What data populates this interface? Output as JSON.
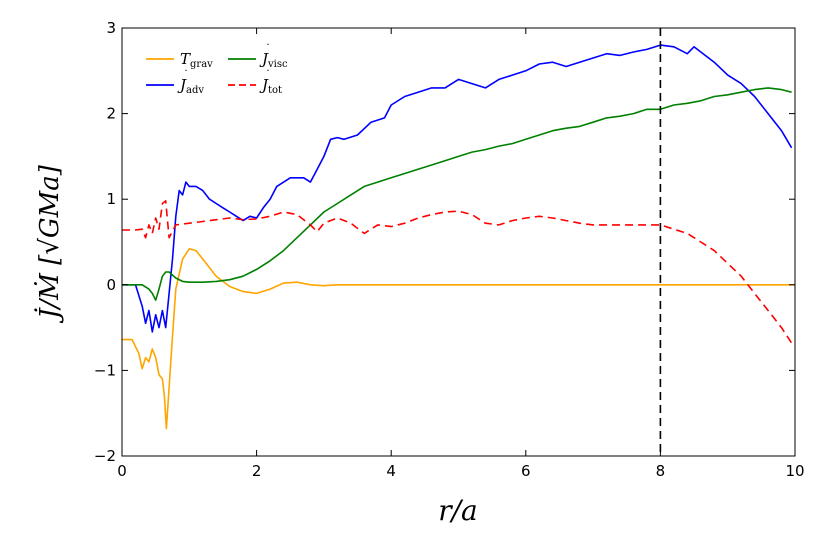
{
  "chart_data": {
    "type": "line",
    "xlabel": "r/a",
    "ylabel": "J̇/Ṁ  [√GMa]",
    "xlim": [
      0,
      10
    ],
    "ylim": [
      -2,
      3
    ],
    "xticks": [
      "0",
      "2",
      "4",
      "6",
      "8",
      "10"
    ],
    "yticks": [
      "−2",
      "−1",
      "0",
      "1",
      "2",
      "3"
    ],
    "grid": false,
    "legend_position": "top-left",
    "vline": {
      "x": 8,
      "style": "dashed",
      "color": "#000000"
    },
    "series": [
      {
        "name": "T_grav",
        "name_main": "T",
        "name_sub": "grav",
        "color": "#FFA500",
        "dash": "solid",
        "x": [
          0,
          0.15,
          0.25,
          0.3,
          0.35,
          0.4,
          0.45,
          0.5,
          0.55,
          0.6,
          0.63,
          0.66,
          0.7,
          0.75,
          0.8,
          0.9,
          1.0,
          1.1,
          1.2,
          1.4,
          1.6,
          1.8,
          2.0,
          2.2,
          2.4,
          2.6,
          2.8,
          3.0,
          3.2,
          3.4,
          4.0,
          5.0,
          6.0,
          7.0,
          8.0,
          9.0,
          10.0
        ],
        "y": [
          -0.64,
          -0.64,
          -0.8,
          -0.98,
          -0.85,
          -0.9,
          -0.75,
          -0.85,
          -1.05,
          -1.1,
          -1.3,
          -1.68,
          -1.2,
          -0.6,
          -0.05,
          0.3,
          0.42,
          0.4,
          0.3,
          0.1,
          -0.02,
          -0.08,
          -0.1,
          -0.05,
          0.02,
          0.03,
          0.0,
          -0.01,
          0.0,
          0.0,
          0.0,
          0.0,
          0.0,
          0.0,
          0.0,
          0.0,
          0.0
        ]
      },
      {
        "name": "J_adv",
        "name_main": "J",
        "name_sub": "adv",
        "color": "#0000FF",
        "dash": "solid",
        "x": [
          0,
          0.2,
          0.3,
          0.35,
          0.4,
          0.45,
          0.5,
          0.55,
          0.6,
          0.65,
          0.7,
          0.75,
          0.8,
          0.85,
          0.9,
          0.95,
          1.0,
          1.1,
          1.2,
          1.3,
          1.4,
          1.5,
          1.6,
          1.7,
          1.8,
          1.9,
          2.0,
          2.1,
          2.2,
          2.3,
          2.5,
          2.7,
          2.8,
          2.9,
          3.0,
          3.1,
          3.2,
          3.3,
          3.5,
          3.7,
          3.9,
          4.0,
          4.2,
          4.4,
          4.6,
          4.8,
          5.0,
          5.2,
          5.4,
          5.6,
          5.8,
          6.0,
          6.2,
          6.4,
          6.6,
          6.8,
          7.0,
          7.2,
          7.4,
          7.6,
          7.8,
          8.0,
          8.2,
          8.4,
          8.5,
          8.6,
          8.8,
          9.0,
          9.2,
          9.4,
          9.6,
          9.8,
          9.95
        ],
        "y": [
          0.0,
          0.0,
          -0.25,
          -0.45,
          -0.3,
          -0.55,
          -0.35,
          -0.5,
          -0.3,
          -0.5,
          -0.1,
          0.3,
          0.8,
          1.1,
          1.05,
          1.2,
          1.15,
          1.15,
          1.1,
          1.0,
          0.95,
          0.9,
          0.85,
          0.8,
          0.75,
          0.8,
          0.78,
          0.9,
          1.0,
          1.15,
          1.25,
          1.25,
          1.2,
          1.35,
          1.5,
          1.7,
          1.72,
          1.7,
          1.75,
          1.9,
          1.95,
          2.1,
          2.2,
          2.25,
          2.3,
          2.3,
          2.4,
          2.35,
          2.3,
          2.4,
          2.45,
          2.5,
          2.58,
          2.6,
          2.55,
          2.6,
          2.65,
          2.7,
          2.68,
          2.72,
          2.75,
          2.8,
          2.78,
          2.7,
          2.78,
          2.72,
          2.6,
          2.45,
          2.35,
          2.2,
          2.0,
          1.8,
          1.6
        ]
      },
      {
        "name": "J_visc",
        "name_main": "J",
        "name_sub": "visc",
        "color": "#008000",
        "dash": "solid",
        "x": [
          0,
          0.2,
          0.3,
          0.4,
          0.45,
          0.5,
          0.55,
          0.6,
          0.65,
          0.7,
          0.8,
          0.9,
          1.0,
          1.2,
          1.4,
          1.6,
          1.8,
          2.0,
          2.2,
          2.4,
          2.6,
          2.8,
          3.0,
          3.2,
          3.4,
          3.6,
          3.8,
          4.0,
          4.2,
          4.4,
          4.6,
          4.8,
          5.0,
          5.2,
          5.4,
          5.6,
          5.8,
          6.0,
          6.2,
          6.4,
          6.6,
          6.8,
          7.0,
          7.2,
          7.4,
          7.6,
          7.8,
          8.0,
          8.2,
          8.4,
          8.6,
          8.8,
          9.0,
          9.2,
          9.4,
          9.6,
          9.8,
          9.95
        ],
        "y": [
          0.0,
          0.0,
          0.0,
          -0.05,
          -0.1,
          -0.18,
          -0.05,
          0.1,
          0.15,
          0.15,
          0.08,
          0.04,
          0.03,
          0.03,
          0.04,
          0.06,
          0.1,
          0.18,
          0.28,
          0.4,
          0.55,
          0.7,
          0.85,
          0.95,
          1.05,
          1.15,
          1.2,
          1.25,
          1.3,
          1.35,
          1.4,
          1.45,
          1.5,
          1.55,
          1.58,
          1.62,
          1.65,
          1.7,
          1.75,
          1.8,
          1.83,
          1.85,
          1.9,
          1.95,
          1.97,
          2.0,
          2.05,
          2.05,
          2.1,
          2.12,
          2.15,
          2.2,
          2.22,
          2.25,
          2.28,
          2.3,
          2.28,
          2.25
        ]
      },
      {
        "name": "J_tot",
        "name_main": "J",
        "name_sub": "tot",
        "color": "#FF0000",
        "dash": "8,5",
        "x": [
          0,
          0.2,
          0.3,
          0.35,
          0.4,
          0.45,
          0.5,
          0.55,
          0.6,
          0.65,
          0.7,
          0.8,
          1.0,
          1.2,
          1.4,
          1.6,
          1.8,
          2.0,
          2.2,
          2.4,
          2.6,
          2.8,
          2.9,
          3.0,
          3.2,
          3.4,
          3.6,
          3.8,
          4.0,
          4.2,
          4.4,
          4.6,
          4.8,
          5.0,
          5.2,
          5.4,
          5.6,
          5.8,
          6.0,
          6.2,
          6.4,
          6.6,
          6.8,
          7.0,
          7.2,
          7.4,
          7.6,
          7.8,
          8.0,
          8.2,
          8.4,
          8.6,
          8.8,
          9.0,
          9.2,
          9.4,
          9.6,
          9.8,
          9.95
        ],
        "y": [
          0.64,
          0.64,
          0.65,
          0.55,
          0.7,
          0.6,
          0.78,
          0.65,
          0.95,
          0.98,
          0.55,
          0.7,
          0.72,
          0.74,
          0.76,
          0.78,
          0.76,
          0.77,
          0.8,
          0.85,
          0.82,
          0.7,
          0.62,
          0.72,
          0.78,
          0.72,
          0.6,
          0.7,
          0.68,
          0.72,
          0.78,
          0.82,
          0.85,
          0.86,
          0.82,
          0.72,
          0.7,
          0.75,
          0.78,
          0.8,
          0.78,
          0.75,
          0.72,
          0.7,
          0.7,
          0.7,
          0.7,
          0.7,
          0.7,
          0.65,
          0.6,
          0.5,
          0.4,
          0.25,
          0.1,
          -0.1,
          -0.3,
          -0.5,
          -0.68
        ]
      }
    ]
  }
}
